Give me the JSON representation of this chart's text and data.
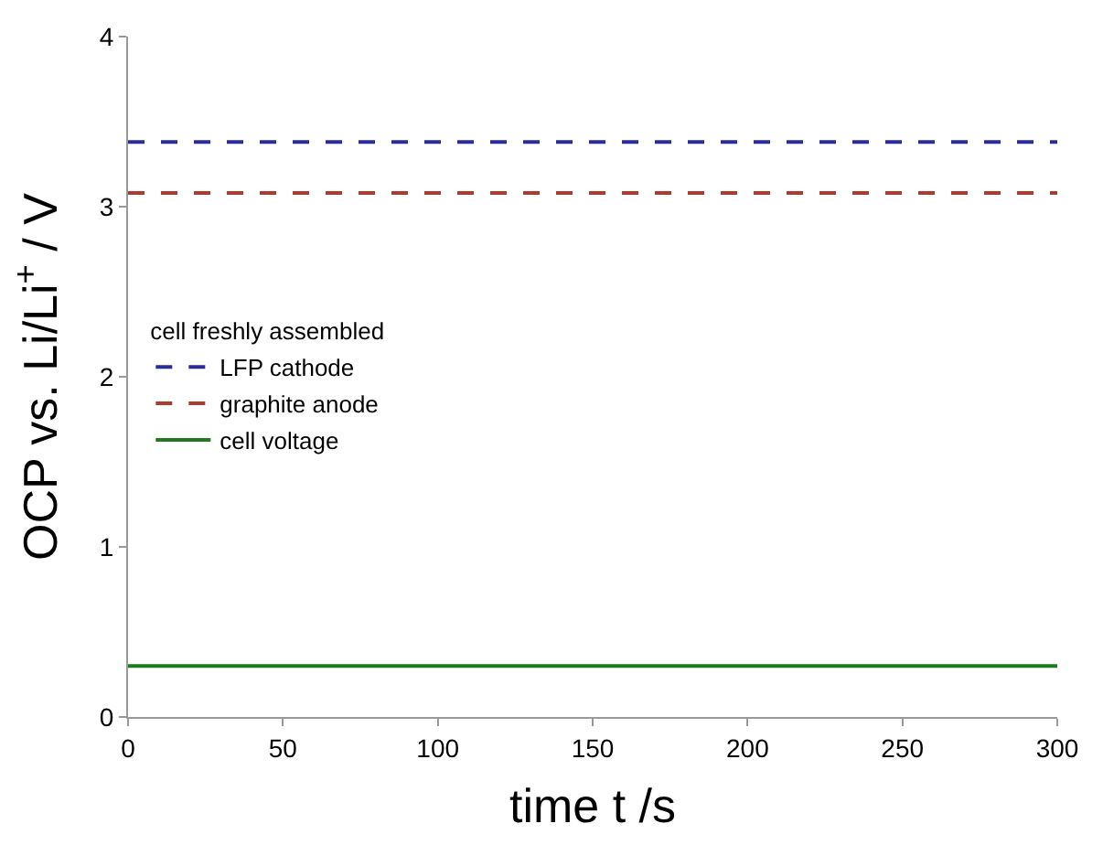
{
  "chart_data": {
    "type": "line",
    "xlabel": "time t /s",
    "ylabel": "OCP vs. Li/Li$^{+}$ / V",
    "legend_title": "cell freshly assembled",
    "x": [
      0,
      300
    ],
    "series": [
      {
        "name": "LFP cathode",
        "color": "#2b2b9c",
        "values": [
          3.38,
          3.38
        ],
        "line_style": "dashed"
      },
      {
        "name": "graphite anode",
        "color": "#b03a2e",
        "values": [
          3.08,
          3.08
        ],
        "line_style": "dashed"
      },
      {
        "name": "cell voltage",
        "color": "#1f7a1f",
        "values": [
          0.3,
          0.3
        ],
        "line_style": "solid"
      }
    ],
    "xlim": [
      0,
      300
    ],
    "xticks": [
      0,
      50,
      100,
      150,
      200,
      250,
      300
    ],
    "ylim": [
      0,
      4
    ],
    "yticks": [
      0,
      1,
      2,
      3,
      4
    ],
    "legend": "left",
    "marker": "none"
  }
}
